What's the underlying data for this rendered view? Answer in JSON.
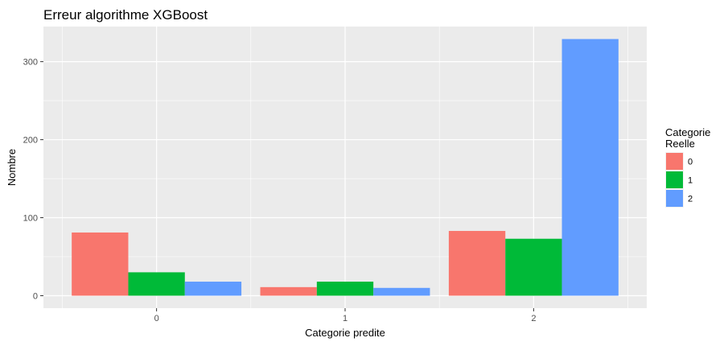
{
  "chart_data": {
    "type": "bar",
    "title": "Erreur algorithme XGBoost",
    "xlabel": "Categorie predite",
    "ylabel": "Nombre",
    "categories": [
      "0",
      "1",
      "2"
    ],
    "series": [
      {
        "name": "0",
        "color": "#F8766D",
        "values": [
          81,
          11,
          83
        ]
      },
      {
        "name": "1",
        "color": "#00BA38",
        "values": [
          30,
          18,
          73
        ]
      },
      {
        "name": "2",
        "color": "#619CFF",
        "values": [
          18,
          10,
          329
        ]
      }
    ],
    "y_ticks": [
      0,
      100,
      200,
      300
    ],
    "ylim": [
      -16,
      345
    ],
    "grid": true,
    "panel_background": "#EBEBEB",
    "legend": {
      "title_lines": [
        "Categorie",
        "Reelle"
      ],
      "position": "right"
    }
  }
}
